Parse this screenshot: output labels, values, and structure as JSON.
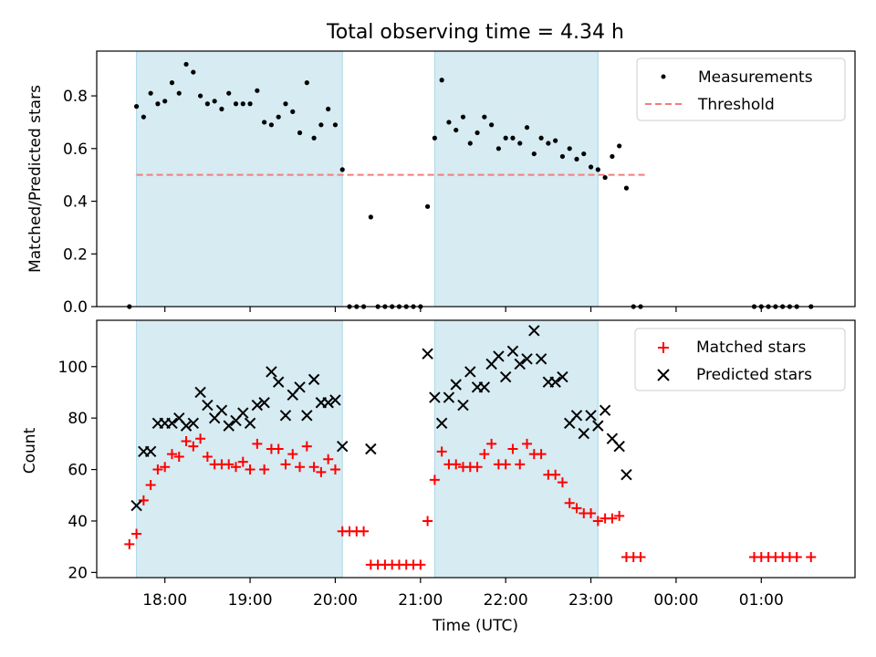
{
  "chart_data": [
    {
      "type": "scatter",
      "title": "Total observing time = 4.34 h",
      "xlabel": "",
      "ylabel": "Matched/Predicted stars",
      "ylim": [
        0,
        0.97
      ],
      "yticks": [
        0.0,
        0.2,
        0.4,
        0.6,
        0.8
      ],
      "ytick_labels": [
        "0.0",
        "0.2",
        "0.4",
        "0.6",
        "0.8"
      ],
      "legend_position": "top-right",
      "shaded_intervals": [
        [
          "17:40",
          "20:05"
        ],
        [
          "21:10",
          "23:05"
        ]
      ],
      "threshold": 0.5,
      "threshold_range": [
        "17:40",
        "23:40"
      ],
      "series": [
        {
          "name": "Measurements",
          "color": "#000000",
          "points": [
            [
              "17:35",
              0.0
            ],
            [
              "17:40",
              0.76
            ],
            [
              "17:45",
              0.72
            ],
            [
              "17:50",
              0.81
            ],
            [
              "17:55",
              0.77
            ],
            [
              "18:00",
              0.78
            ],
            [
              "18:05",
              0.85
            ],
            [
              "18:10",
              0.81
            ],
            [
              "18:15",
              0.92
            ],
            [
              "18:20",
              0.89
            ],
            [
              "18:25",
              0.8
            ],
            [
              "18:30",
              0.77
            ],
            [
              "18:35",
              0.78
            ],
            [
              "18:40",
              0.75
            ],
            [
              "18:45",
              0.81
            ],
            [
              "18:50",
              0.77
            ],
            [
              "18:55",
              0.77
            ],
            [
              "19:00",
              0.77
            ],
            [
              "19:05",
              0.82
            ],
            [
              "19:10",
              0.7
            ],
            [
              "19:15",
              0.69
            ],
            [
              "19:20",
              0.72
            ],
            [
              "19:25",
              0.77
            ],
            [
              "19:30",
              0.74
            ],
            [
              "19:35",
              0.66
            ],
            [
              "19:40",
              0.85
            ],
            [
              "19:45",
              0.64
            ],
            [
              "19:50",
              0.69
            ],
            [
              "19:55",
              0.75
            ],
            [
              "20:00",
              0.69
            ],
            [
              "20:05",
              0.52
            ],
            [
              "20:10",
              0.0
            ],
            [
              "20:15",
              0.0
            ],
            [
              "20:20",
              0.0
            ],
            [
              "20:25",
              0.34
            ],
            [
              "20:30",
              0.0
            ],
            [
              "20:35",
              0.0
            ],
            [
              "20:40",
              0.0
            ],
            [
              "20:45",
              0.0
            ],
            [
              "20:50",
              0.0
            ],
            [
              "20:55",
              0.0
            ],
            [
              "21:00",
              0.0
            ],
            [
              "21:05",
              0.38
            ],
            [
              "21:10",
              0.64
            ],
            [
              "21:15",
              0.86
            ],
            [
              "21:20",
              0.7
            ],
            [
              "21:25",
              0.67
            ],
            [
              "21:30",
              0.72
            ],
            [
              "21:35",
              0.62
            ],
            [
              "21:40",
              0.66
            ],
            [
              "21:45",
              0.72
            ],
            [
              "21:50",
              0.69
            ],
            [
              "21:55",
              0.6
            ],
            [
              "22:00",
              0.64
            ],
            [
              "22:05",
              0.64
            ],
            [
              "22:10",
              0.62
            ],
            [
              "22:15",
              0.68
            ],
            [
              "22:20",
              0.58
            ],
            [
              "22:25",
              0.64
            ],
            [
              "22:30",
              0.62
            ],
            [
              "22:35",
              0.63
            ],
            [
              "22:40",
              0.57
            ],
            [
              "22:45",
              0.6
            ],
            [
              "22:50",
              0.56
            ],
            [
              "22:55",
              0.58
            ],
            [
              "23:00",
              0.53
            ],
            [
              "23:05",
              0.52
            ],
            [
              "23:10",
              0.49
            ],
            [
              "23:15",
              0.57
            ],
            [
              "23:20",
              0.61
            ],
            [
              "23:25",
              0.45
            ],
            [
              "23:30",
              0.0
            ],
            [
              "23:35",
              0.0
            ],
            [
              "00:55",
              0.0
            ],
            [
              "01:00",
              0.0
            ],
            [
              "01:05",
              0.0
            ],
            [
              "01:10",
              0.0
            ],
            [
              "01:15",
              0.0
            ],
            [
              "01:20",
              0.0
            ],
            [
              "01:25",
              0.0
            ],
            [
              "01:35",
              0.0
            ]
          ]
        },
        {
          "name": "Threshold",
          "color": "#f47c7c",
          "style": "dashed",
          "points": [
            [
              "17:40",
              0.5
            ],
            [
              "23:40",
              0.5
            ]
          ]
        }
      ]
    },
    {
      "type": "scatter",
      "title": "",
      "xlabel": "Time (UTC)",
      "ylabel": "Count",
      "ylim": [
        18,
        118
      ],
      "yticks": [
        20,
        40,
        60,
        80,
        100
      ],
      "ytick_labels": [
        "20",
        "40",
        "60",
        "80",
        "100"
      ],
      "x_tick_labels": [
        "18:00",
        "19:00",
        "20:00",
        "21:00",
        "22:00",
        "23:00",
        "00:00",
        "01:00"
      ],
      "legend_position": "top-right",
      "shaded_intervals": [
        [
          "17:40",
          "20:05"
        ],
        [
          "21:10",
          "23:05"
        ]
      ],
      "series": [
        {
          "name": "Matched stars",
          "color": "#ff0000",
          "marker": "+",
          "points": [
            [
              "17:35",
              31
            ],
            [
              "17:40",
              35
            ],
            [
              "17:45",
              48
            ],
            [
              "17:50",
              54
            ],
            [
              "17:55",
              60
            ],
            [
              "18:00",
              61
            ],
            [
              "18:05",
              66
            ],
            [
              "18:10",
              65
            ],
            [
              "18:15",
              71
            ],
            [
              "18:20",
              69
            ],
            [
              "18:25",
              72
            ],
            [
              "18:30",
              65
            ],
            [
              "18:35",
              62
            ],
            [
              "18:40",
              62
            ],
            [
              "18:45",
              62
            ],
            [
              "18:50",
              61
            ],
            [
              "18:55",
              63
            ],
            [
              "19:00",
              60
            ],
            [
              "19:05",
              70
            ],
            [
              "19:10",
              60
            ],
            [
              "19:15",
              68
            ],
            [
              "19:20",
              68
            ],
            [
              "19:25",
              62
            ],
            [
              "19:30",
              66
            ],
            [
              "19:35",
              61
            ],
            [
              "19:40",
              69
            ],
            [
              "19:45",
              61
            ],
            [
              "19:50",
              59
            ],
            [
              "19:55",
              64
            ],
            [
              "20:00",
              60
            ],
            [
              "20:05",
              36
            ],
            [
              "20:10",
              36
            ],
            [
              "20:15",
              36
            ],
            [
              "20:20",
              36
            ],
            [
              "20:25",
              23
            ],
            [
              "20:30",
              23
            ],
            [
              "20:35",
              23
            ],
            [
              "20:40",
              23
            ],
            [
              "20:45",
              23
            ],
            [
              "20:50",
              23
            ],
            [
              "20:55",
              23
            ],
            [
              "21:00",
              23
            ],
            [
              "21:05",
              40
            ],
            [
              "21:10",
              56
            ],
            [
              "21:15",
              67
            ],
            [
              "21:20",
              62
            ],
            [
              "21:25",
              62
            ],
            [
              "21:30",
              61
            ],
            [
              "21:35",
              61
            ],
            [
              "21:40",
              61
            ],
            [
              "21:45",
              66
            ],
            [
              "21:50",
              70
            ],
            [
              "21:55",
              62
            ],
            [
              "22:00",
              62
            ],
            [
              "22:05",
              68
            ],
            [
              "22:10",
              62
            ],
            [
              "22:15",
              70
            ],
            [
              "22:20",
              66
            ],
            [
              "22:25",
              66
            ],
            [
              "22:30",
              58
            ],
            [
              "22:35",
              58
            ],
            [
              "22:40",
              55
            ],
            [
              "22:45",
              47
            ],
            [
              "22:50",
              45
            ],
            [
              "22:55",
              43
            ],
            [
              "23:00",
              43
            ],
            [
              "23:05",
              40
            ],
            [
              "23:10",
              41
            ],
            [
              "23:15",
              41
            ],
            [
              "23:20",
              42
            ],
            [
              "23:25",
              26
            ],
            [
              "23:30",
              26
            ],
            [
              "23:35",
              26
            ],
            [
              "00:55",
              26
            ],
            [
              "01:00",
              26
            ],
            [
              "01:05",
              26
            ],
            [
              "01:10",
              26
            ],
            [
              "01:15",
              26
            ],
            [
              "01:20",
              26
            ],
            [
              "01:25",
              26
            ],
            [
              "01:35",
              26
            ]
          ]
        },
        {
          "name": "Predicted stars",
          "color": "#000000",
          "marker": "x",
          "points": [
            [
              "17:40",
              46
            ],
            [
              "17:45",
              67
            ],
            [
              "17:50",
              67
            ],
            [
              "17:55",
              78
            ],
            [
              "18:00",
              78
            ],
            [
              "18:05",
              78
            ],
            [
              "18:10",
              80
            ],
            [
              "18:15",
              77
            ],
            [
              "18:20",
              78
            ],
            [
              "18:25",
              90
            ],
            [
              "18:30",
              85
            ],
            [
              "18:35",
              80
            ],
            [
              "18:40",
              83
            ],
            [
              "18:45",
              77
            ],
            [
              "18:50",
              79
            ],
            [
              "18:55",
              82
            ],
            [
              "19:00",
              78
            ],
            [
              "19:05",
              85
            ],
            [
              "19:10",
              86
            ],
            [
              "19:15",
              98
            ],
            [
              "19:20",
              94
            ],
            [
              "19:25",
              81
            ],
            [
              "19:30",
              89
            ],
            [
              "19:35",
              92
            ],
            [
              "19:40",
              81
            ],
            [
              "19:45",
              95
            ],
            [
              "19:50",
              86
            ],
            [
              "19:55",
              86
            ],
            [
              "20:00",
              87
            ],
            [
              "20:05",
              69
            ],
            [
              "20:25",
              68
            ],
            [
              "21:05",
              105
            ],
            [
              "21:10",
              88
            ],
            [
              "21:15",
              78
            ],
            [
              "21:20",
              88
            ],
            [
              "21:25",
              93
            ],
            [
              "21:30",
              85
            ],
            [
              "21:35",
              98
            ],
            [
              "21:40",
              92
            ],
            [
              "21:45",
              92
            ],
            [
              "21:50",
              101
            ],
            [
              "21:55",
              104
            ],
            [
              "22:00",
              96
            ],
            [
              "22:05",
              106
            ],
            [
              "22:10",
              101
            ],
            [
              "22:15",
              103
            ],
            [
              "22:20",
              114
            ],
            [
              "22:25",
              103
            ],
            [
              "22:30",
              94
            ],
            [
              "22:35",
              94
            ],
            [
              "22:40",
              96
            ],
            [
              "22:45",
              78
            ],
            [
              "22:50",
              81
            ],
            [
              "22:55",
              74
            ],
            [
              "23:00",
              81
            ],
            [
              "23:05",
              77
            ],
            [
              "23:10",
              83
            ],
            [
              "23:15",
              72
            ],
            [
              "23:20",
              69
            ],
            [
              "23:25",
              58
            ]
          ]
        }
      ]
    }
  ]
}
